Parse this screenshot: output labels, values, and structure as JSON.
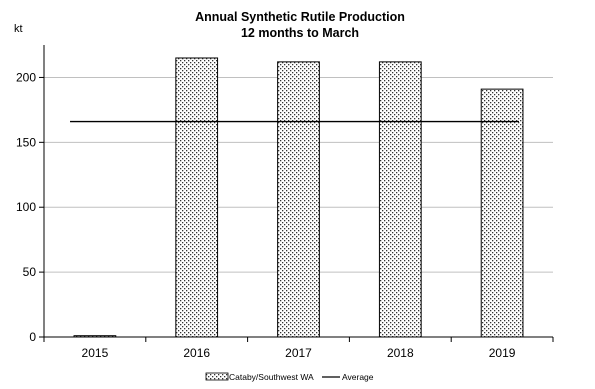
{
  "chart_data": {
    "type": "bar",
    "title": "Annual Synthetic Rutile Production",
    "subtitle": "12 months to March",
    "ylabel": "kt",
    "categories": [
      "2015",
      "2016",
      "2017",
      "2018",
      "2019"
    ],
    "series": [
      {
        "name": "Cataby/Southwest WA",
        "type": "bar",
        "values": [
          1,
          215,
          212,
          212,
          191
        ]
      },
      {
        "name": "Average",
        "type": "line",
        "values": [
          166,
          166,
          166,
          166,
          166
        ]
      }
    ],
    "ylim": [
      0,
      225
    ],
    "yticks": [
      "0",
      "50",
      "100",
      "150",
      "200"
    ],
    "grid": true,
    "legend": "bottom",
    "colors": {
      "bar_fill": "#ffffff",
      "bar_dots": "#000000",
      "bar_edge": "#000000",
      "line": "#000000",
      "grid": "#c0c0c0"
    }
  }
}
